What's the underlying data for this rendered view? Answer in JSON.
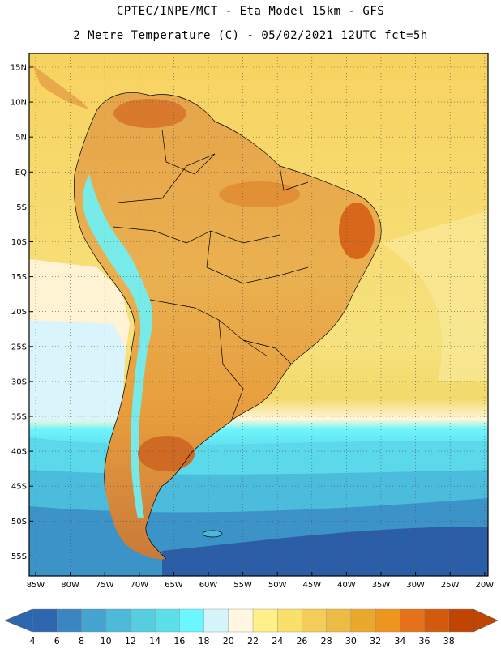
{
  "header": {
    "line1": "CPTEC/INPE/MCT -  Eta Model 15km - GFS",
    "line2": "2 Metre Temperature (C) - 05/02/2021 12UTC fct=5h"
  },
  "map": {
    "lat_labels": [
      "15N",
      "10N",
      "5N",
      "EQ",
      "5S",
      "10S",
      "15S",
      "20S",
      "25S",
      "30S",
      "35S",
      "40S",
      "45S",
      "50S",
      "55S"
    ],
    "lon_labels": [
      "85W",
      "80W",
      "75W",
      "70W",
      "65W",
      "60W",
      "55W",
      "50W",
      "45W",
      "40W",
      "35W",
      "30W",
      "25W",
      "20W"
    ],
    "grid_lines": "dotted",
    "ocean_bands": [
      {
        "level": "north-tropical",
        "color": "#f7d56a"
      },
      {
        "level": "central-atlantic",
        "color": "#f5e27a"
      },
      {
        "level": "pacific-cool",
        "color": "#fff3cf"
      },
      {
        "level": "pacific-cold",
        "color": "#d9f5fb"
      },
      {
        "level": "south-18",
        "color": "#5ce0ee"
      },
      {
        "level": "south-12",
        "color": "#4cc3dc"
      },
      {
        "level": "south-8",
        "color": "#3a92c8"
      },
      {
        "level": "south-4",
        "color": "#2c5ea8"
      }
    ]
  },
  "colorbar": {
    "labels": [
      "4",
      "6",
      "8",
      "10",
      "12",
      "14",
      "16",
      "18",
      "20",
      "22",
      "24",
      "26",
      "28",
      "30",
      "32",
      "34",
      "36",
      "38"
    ],
    "colors": [
      "#2f66b0",
      "#3a86c2",
      "#45a4d0",
      "#4ebad9",
      "#57cde0",
      "#5cdfe9",
      "#6af7ff",
      "#d4f6fb",
      "#fff7e0",
      "#fff08a",
      "#f9e06a",
      "#f3cd57",
      "#ecbb43",
      "#e9a92c",
      "#ee9520",
      "#e5721a",
      "#d25a0d",
      "#c04505"
    ]
  }
}
